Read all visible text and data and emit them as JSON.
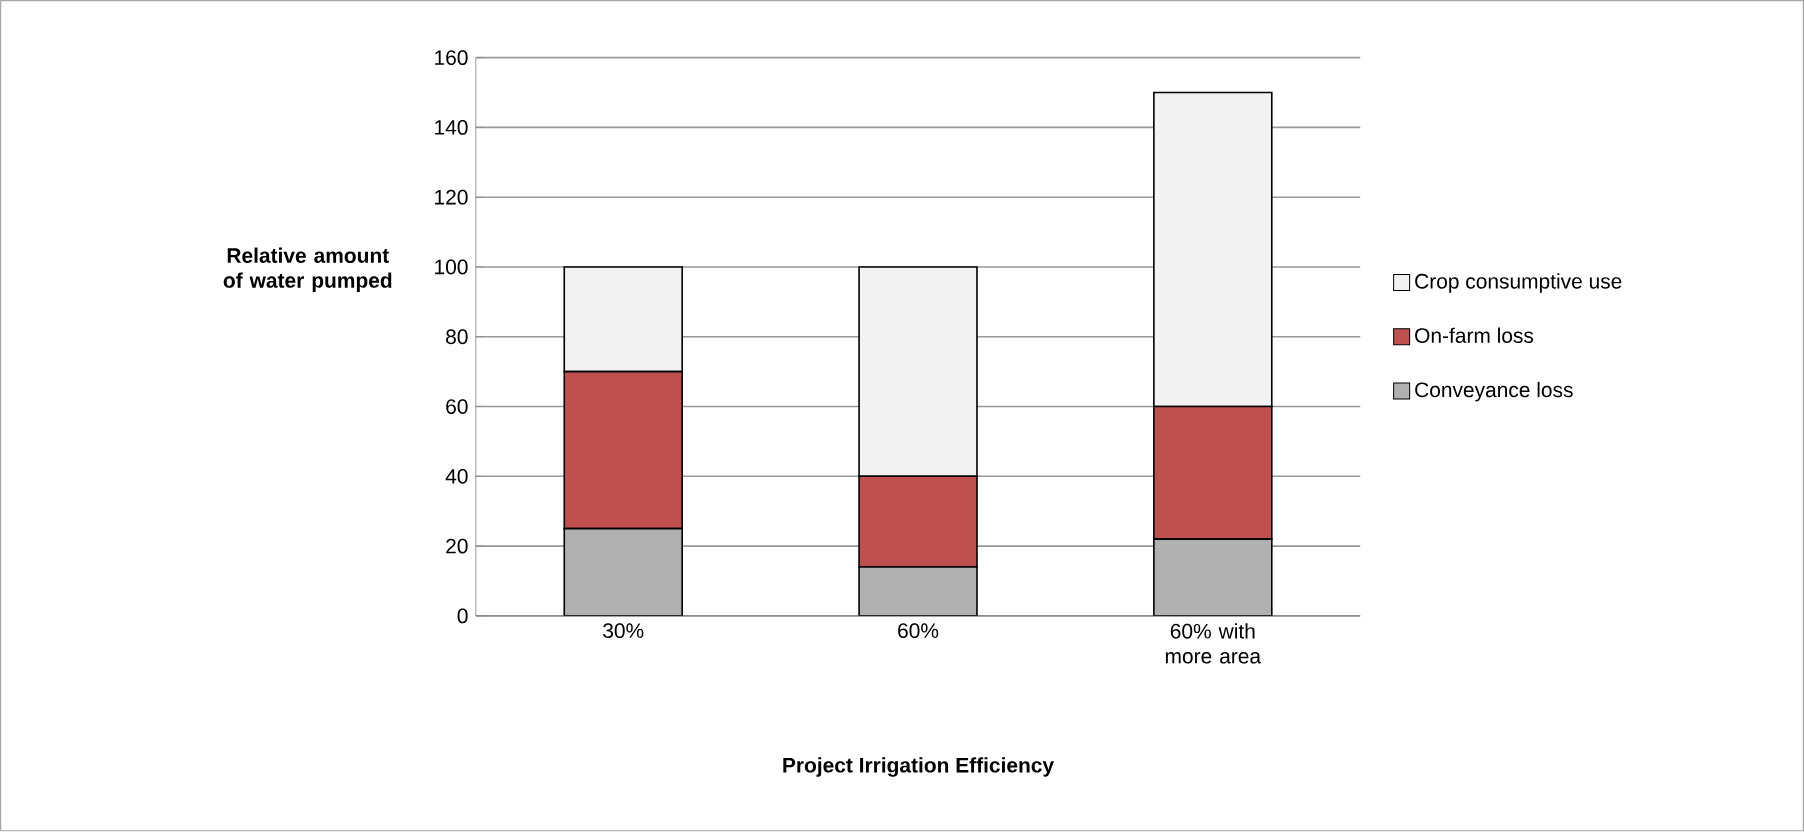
{
  "chart_data": {
    "type": "bar",
    "stacked": true,
    "xlabel": "Project Irrigation Efficiency",
    "ylabel": "Relative amount of water pumped",
    "categories": [
      "30%",
      "60%",
      "60% with more area"
    ],
    "series": [
      {
        "name": "Conveyance loss",
        "color": "#b0b0b0",
        "values": [
          25,
          14,
          22
        ]
      },
      {
        "name": "On-farm loss",
        "color": "#c0504d",
        "values": [
          45,
          26,
          38
        ]
      },
      {
        "name": "Crop consumptive use",
        "color": "#f2f2f2",
        "values": [
          30,
          60,
          90
        ]
      }
    ],
    "ylim": [
      0,
      160
    ],
    "yticks": [
      0,
      20,
      40,
      60,
      80,
      100,
      120,
      140,
      160
    ],
    "grid": "y",
    "legend": "right"
  }
}
